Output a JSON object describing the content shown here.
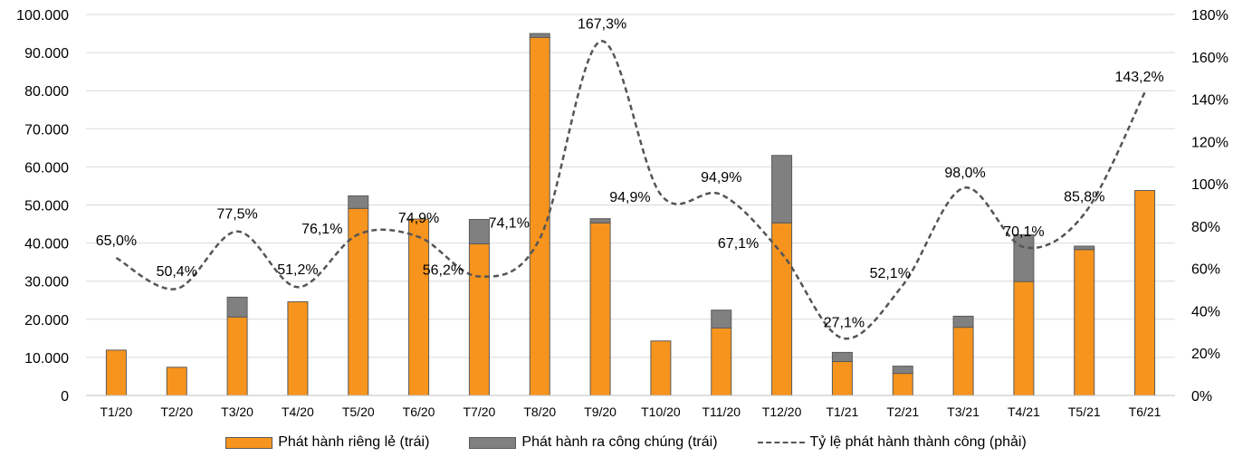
{
  "chart_data": {
    "type": "bar",
    "stacked": true,
    "categories": [
      "T1/20",
      "T2/20",
      "T3/20",
      "T4/20",
      "T5/20",
      "T6/20",
      "T7/20",
      "T8/20",
      "T9/20",
      "T10/20",
      "T11/20",
      "T12/20",
      "T1/21",
      "T2/21",
      "T3/21",
      "T4/21",
      "T5/21",
      "T6/21"
    ],
    "series": [
      {
        "name": "Phát hành riêng lẻ (trái)",
        "type": "bar",
        "axis": "left",
        "color": "#F7941D",
        "values": [
          11900,
          7400,
          20600,
          24600,
          49100,
          46300,
          39800,
          94000,
          45300,
          14300,
          17700,
          45300,
          8900,
          5800,
          17900,
          29900,
          38300,
          53800
        ]
      },
      {
        "name": "Phát hành ra công chúng (trái)",
        "type": "bar",
        "axis": "left",
        "color": "#808080",
        "values": [
          0,
          0,
          5200,
          0,
          3300,
          0,
          6400,
          1000,
          1100,
          0,
          4700,
          17700,
          2400,
          1900,
          2900,
          12300,
          900,
          0
        ]
      },
      {
        "name": "Tỷ lệ phát hành thành công (phải)",
        "type": "line",
        "axis": "right",
        "color": "#555555",
        "values": [
          65.0,
          50.4,
          77.5,
          51.2,
          76.1,
          74.9,
          56.2,
          74.1,
          167.3,
          94.9,
          94.9,
          67.1,
          27.1,
          52.1,
          98.0,
          70.1,
          85.8,
          143.2
        ],
        "labels": [
          "65,0%",
          "50,4%",
          "77,5%",
          "51,2%",
          "76,1%",
          "74,9%",
          "56,2%",
          "74,1%",
          "167,3%",
          "94,9%",
          "94,9%",
          "67,1%",
          "27,1%",
          "52,1%",
          "98,0%",
          "70,1%",
          "85,8%",
          "143,2%"
        ]
      }
    ],
    "y_left": {
      "min": 0,
      "max": 100000,
      "ticks": [
        "0",
        "10.000",
        "20.000",
        "30.000",
        "40.000",
        "50.000",
        "60.000",
        "70.000",
        "80.000",
        "90.000",
        "100.000"
      ]
    },
    "y_right": {
      "min": 0,
      "max": 180,
      "ticks": [
        "0%",
        "20%",
        "40%",
        "60%",
        "80%",
        "100%",
        "120%",
        "140%",
        "160%",
        "180%"
      ]
    },
    "grid": true,
    "legend_position": "bottom"
  }
}
